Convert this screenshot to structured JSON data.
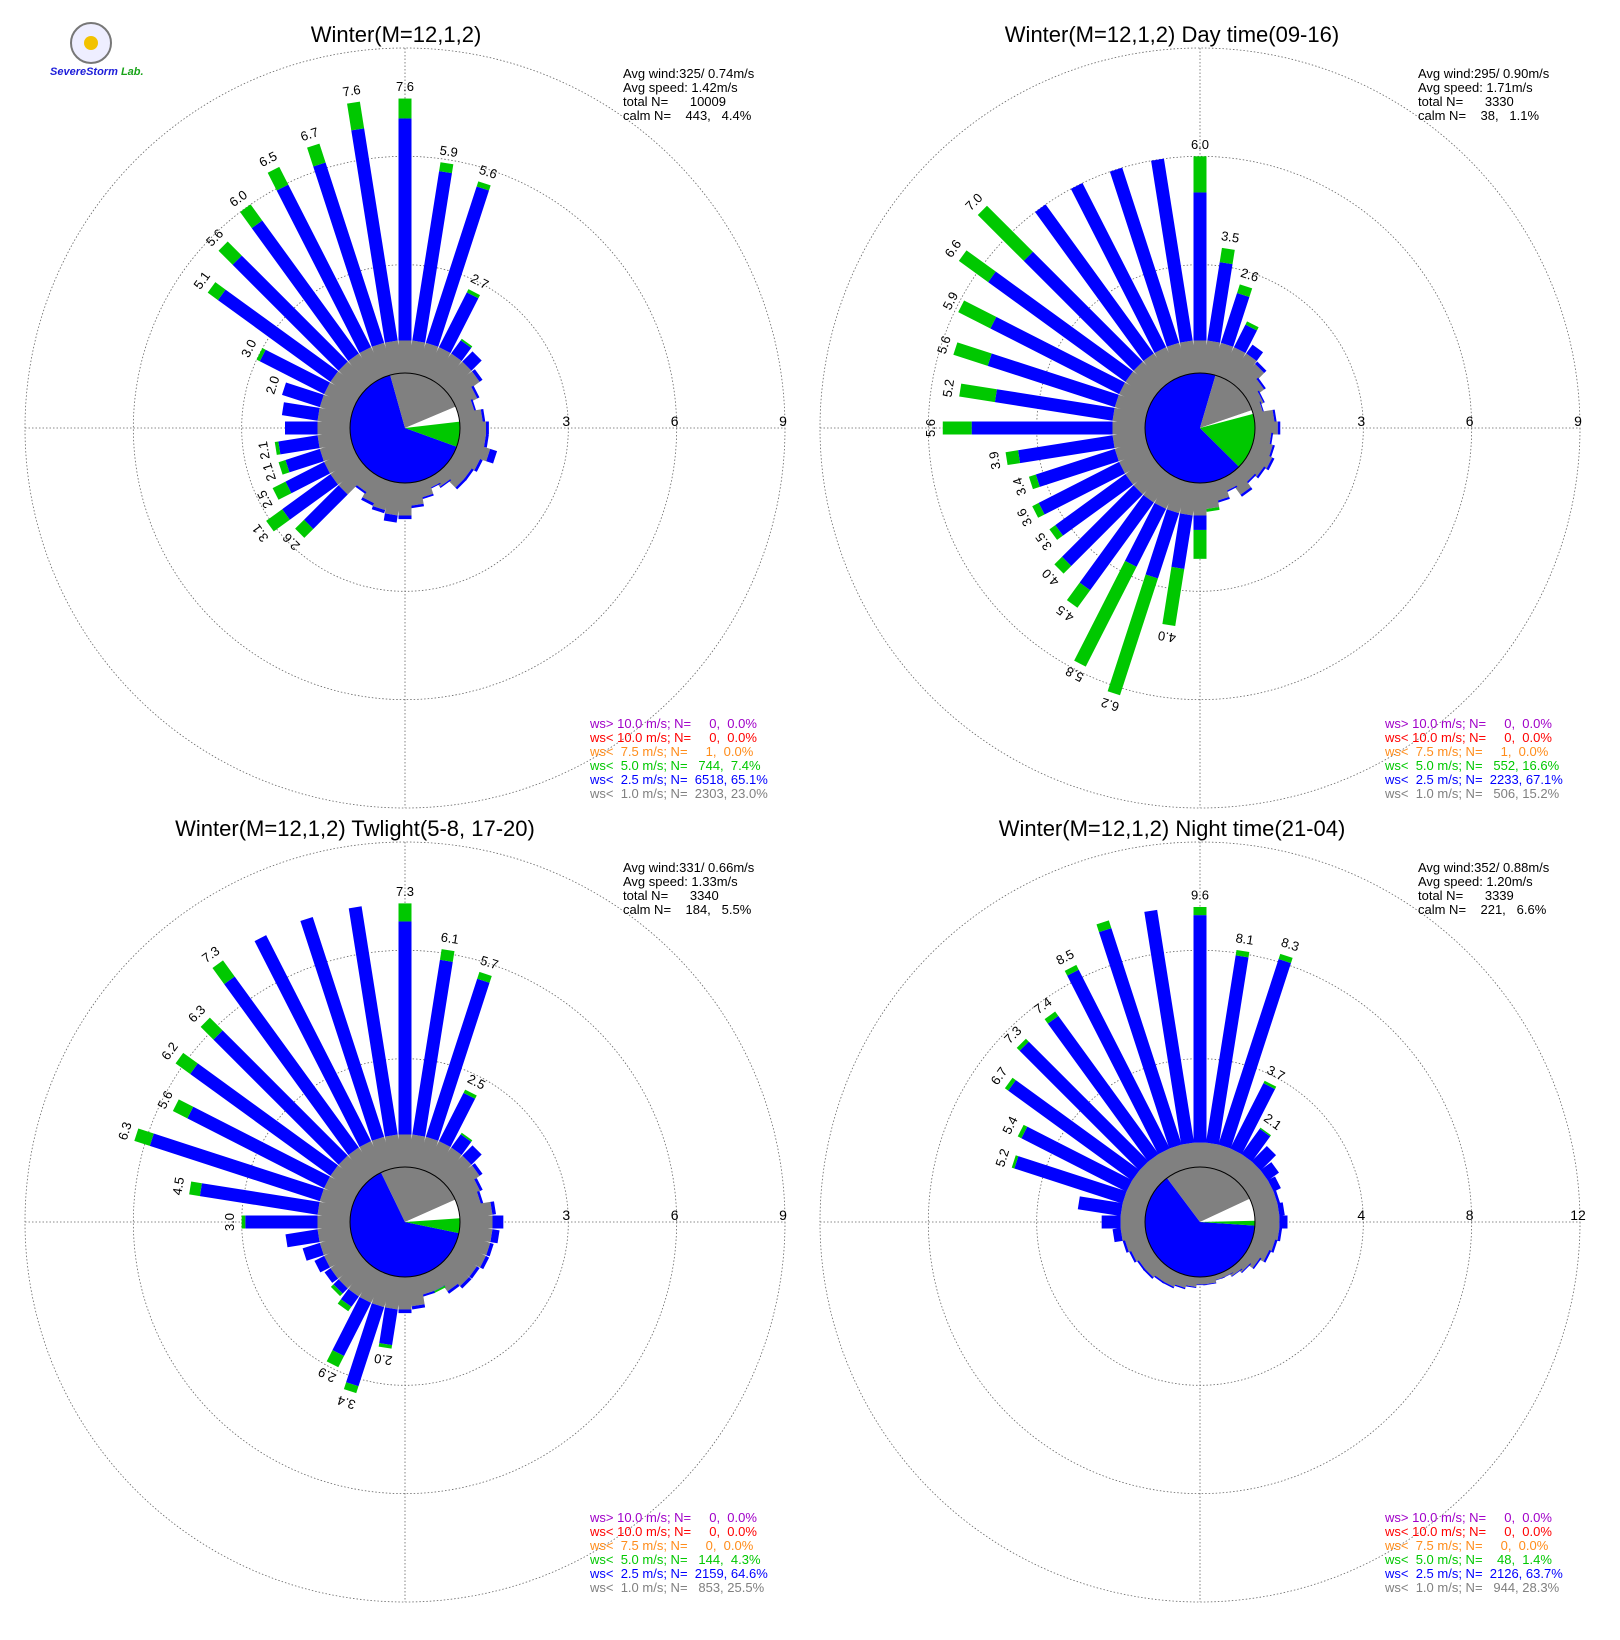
{
  "logo": {
    "text": "SevereStorm",
    "lab": "Lab."
  },
  "colors": {
    "ws_gt10": "#a000c8",
    "ws_lt10": "#ff0000",
    "ws_lt75": "#ff8c1a",
    "ws_lt5": "#00c800",
    "ws_lt25": "#0000ff",
    "ws_lt1": "#808080",
    "calm": "#ffffff",
    "grid": "#666666"
  },
  "chart_data": [
    {
      "type": "wind-rose",
      "title": "Winter(M=12,1,2)",
      "rmax": 9,
      "rings": [
        3,
        6,
        9
      ],
      "stats": [
        "Avg wind:325/ 0.74m/s",
        "Avg speed: 1.42m/s",
        "total N=      10009",
        "calm N=    443,   4.4%"
      ],
      "pie": [
        23.0,
        65.1,
        7.4
      ],
      "bars": [
        7.6,
        5.9,
        5.6,
        2.7,
        1.4,
        1.3,
        1.0,
        0.7,
        0.5,
        0.7,
        0.8,
        0.8,
        1.1,
        0.8,
        0.7,
        0.7,
        0.4,
        0.3,
        0.5,
        0.7,
        1.0,
        1.1,
        0.9,
        0.8,
        0.6,
        2.6,
        3.1,
        2.5,
        2.1,
        2.1,
        1.8,
        1.9,
        2.0,
        3.0,
        5.1,
        5.6,
        6.0,
        6.5,
        6.7,
        7.6
      ],
      "green": [
        0.55,
        0.25,
        0.15,
        0.1,
        0.05,
        0,
        0,
        0,
        0,
        0,
        0,
        0,
        0,
        0,
        0,
        0,
        0,
        0,
        0,
        0,
        0,
        0,
        0,
        0,
        0,
        0.35,
        0.55,
        0.4,
        0.2,
        0.1,
        0,
        0,
        0,
        0.1,
        0.35,
        0.55,
        0.55,
        0.55,
        0.55,
        0.75
      ],
      "labels": [
        7.6,
        5.9,
        5.6,
        2.7,
        null,
        null,
        null,
        null,
        null,
        null,
        null,
        null,
        null,
        null,
        null,
        null,
        null,
        null,
        null,
        null,
        null,
        null,
        null,
        null,
        null,
        2.6,
        3.1,
        2.5,
        2.1,
        2.1,
        null,
        null,
        2.0,
        3.0,
        5.1,
        5.6,
        6.0,
        6.5,
        6.7,
        7.6
      ],
      "legend": [
        "ws> 10.0 m/s; N=     0,  0.0%",
        "ws< 10.0 m/s; N=     0,  0.0%",
        "ws<  7.5 m/s; N=     1,  0.0%",
        "ws<  5.0 m/s; N=   744,  7.4%",
        "ws<  2.5 m/s; N=  6518, 65.1%",
        "ws<  1.0 m/s; N=  2303, 23.0%"
      ]
    },
    {
      "type": "wind-rose",
      "title": "Winter(M=12,1,2) Day time(09-16)",
      "rmax": 9,
      "rings": [
        3,
        6,
        9
      ],
      "stats": [
        "Avg wind:295/ 0.90m/s",
        "Avg speed: 1.71m/s",
        "total N=      3330",
        "calm N=    38,   1.1%"
      ],
      "pie": [
        15.2,
        67.1,
        16.6
      ],
      "bars": [
        6.0,
        3.5,
        2.6,
        1.7,
        1.2,
        0.9,
        0.6,
        0.4,
        0.3,
        0.6,
        0.7,
        0.5,
        0.6,
        0.7,
        0.6,
        0.5,
        0.7,
        0.4,
        0.6,
        0.8,
        2.1,
        4.0,
        6.2,
        5.8,
        4.5,
        4.0,
        3.5,
        3.6,
        3.4,
        3.9,
        5.6,
        5.2,
        5.6,
        5.9,
        6.6,
        7.0,
        6.0,
        6.0,
        6.0,
        6.0
      ],
      "green": [
        1.0,
        0.4,
        0.25,
        0.1,
        0,
        0,
        0,
        0,
        0,
        0,
        0,
        0,
        0,
        0,
        0,
        0,
        0,
        0,
        0,
        0.1,
        0.8,
        1.6,
        3.4,
        3.1,
        0.6,
        0.3,
        0.2,
        0.2,
        0.2,
        0.35,
        0.8,
        1.0,
        1.0,
        1.0,
        1.0,
        1.8,
        0,
        0,
        0,
        0
      ],
      "labels": [
        6.0,
        3.5,
        2.6,
        null,
        null,
        null,
        null,
        null,
        null,
        null,
        null,
        null,
        null,
        null,
        null,
        null,
        null,
        null,
        null,
        null,
        null,
        4.0,
        6.2,
        5.8,
        4.5,
        4.0,
        3.5,
        3.6,
        3.4,
        3.9,
        5.6,
        5.2,
        5.6,
        5.9,
        6.6,
        7.0,
        null,
        null,
        null,
        null
      ],
      "legend": [
        "ws> 10.0 m/s; N=     0,  0.0%",
        "ws< 10.0 m/s; N=     0,  0.0%",
        "ws<  7.5 m/s; N=     1,  0.0%",
        "ws<  5.0 m/s; N=   552, 16.6%",
        "ws<  2.5 m/s; N=  2233, 67.1%",
        "ws<  1.0 m/s; N=   506, 15.2%"
      ]
    },
    {
      "type": "wind-rose",
      "title": "Winter(M=12,1,2) Twlight(5-8, 17-20)",
      "rmax": 9,
      "rings": [
        3,
        6,
        9
      ],
      "stats": [
        "Avg wind:331/ 0.66m/s",
        "Avg speed: 1.33m/s",
        "total N=      3340",
        "calm N=    184,   5.5%"
      ],
      "pie": [
        25.5,
        64.6,
        4.3
      ],
      "bars": [
        7.3,
        6.1,
        5.7,
        2.5,
        1.4,
        1.3,
        1.0,
        0.8,
        0.7,
        1.0,
        1.2,
        1.1,
        1.0,
        1.0,
        0.9,
        0.9,
        0.8,
        0.6,
        0.6,
        0.9,
        1.0,
        2.0,
        3.4,
        2.9,
        1.4,
        1.2,
        1.1,
        1.2,
        1.4,
        1.8,
        3.0,
        4.5,
        6.3,
        5.6,
        6.2,
        6.3,
        7.3,
        7.3,
        7.3,
        7.3
      ],
      "green": [
        0.5,
        0.3,
        0.2,
        0.1,
        0.05,
        0,
        0,
        0,
        0,
        0,
        0,
        0,
        0,
        0,
        0,
        0,
        0,
        0.05,
        0,
        0,
        0,
        0.1,
        0.2,
        0.35,
        0.15,
        0.1,
        0,
        0,
        0,
        0,
        0.1,
        0.3,
        0.45,
        0.45,
        0.5,
        0.5,
        0.55,
        0,
        0,
        0
      ],
      "labels": [
        7.3,
        6.1,
        5.7,
        2.5,
        null,
        null,
        null,
        null,
        null,
        null,
        null,
        null,
        null,
        null,
        null,
        null,
        null,
        null,
        null,
        null,
        null,
        2.0,
        3.4,
        2.9,
        null,
        null,
        null,
        null,
        null,
        null,
        3.0,
        4.5,
        6.3,
        5.6,
        6.2,
        6.3,
        7.3,
        null,
        null,
        null
      ],
      "legend": [
        "ws> 10.0 m/s; N=     0,  0.0%",
        "ws< 10.0 m/s; N=     0,  0.0%",
        "ws<  7.5 m/s; N=     0,  0.0%",
        "ws<  5.0 m/s; N=   144,  4.3%",
        "ws<  2.5 m/s; N=  2159, 64.6%",
        "ws<  1.0 m/s; N=   853, 25.5%"
      ]
    },
    {
      "type": "wind-rose",
      "title": "Winter(M=12,1,2) Night time(21-04)",
      "rmax": 12,
      "rings": [
        4,
        8,
        12
      ],
      "stats": [
        "Avg wind:352/ 0.88m/s",
        "Avg speed: 1.20m/s",
        "total N=      3339",
        "calm N=    221,   6.6%"
      ],
      "pie": [
        28.3,
        63.7,
        1.4
      ],
      "bars": [
        9.6,
        8.1,
        8.3,
        3.7,
        2.1,
        1.7,
        1.4,
        1.2,
        1.0,
        1.1,
        1.2,
        1.0,
        0.9,
        0.8,
        0.6,
        0.4,
        0.3,
        0.2,
        0.2,
        0.3,
        0.3,
        0.4,
        0.5,
        0.6,
        0.6,
        0.7,
        0.7,
        0.8,
        0.9,
        1.2,
        1.6,
        2.5,
        5.2,
        5.4,
        6.7,
        7.3,
        7.4,
        8.5,
        9.6,
        9.6
      ],
      "green": [
        0.3,
        0.2,
        0.2,
        0.1,
        0.05,
        0,
        0,
        0,
        0,
        0,
        0,
        0,
        0,
        0,
        0,
        0,
        0,
        0,
        0,
        0,
        0,
        0,
        0,
        0,
        0,
        0,
        0,
        0,
        0,
        0,
        0,
        0,
        0.1,
        0.15,
        0.15,
        0.15,
        0.2,
        0.2,
        0.3,
        0
      ],
      "labels": [
        9.6,
        8.1,
        8.3,
        3.7,
        2.1,
        null,
        null,
        null,
        null,
        null,
        null,
        null,
        null,
        null,
        null,
        null,
        null,
        null,
        null,
        null,
        null,
        null,
        null,
        null,
        null,
        null,
        null,
        null,
        null,
        null,
        null,
        null,
        5.2,
        5.4,
        6.7,
        7.3,
        7.4,
        8.5,
        null,
        null
      ],
      "legend": [
        "ws> 10.0 m/s; N=     0,  0.0%",
        "ws< 10.0 m/s; N=     0,  0.0%",
        "ws<  7.5 m/s; N=     0,  0.0%",
        "ws<  5.0 m/s; N=    48,  1.4%",
        "ws<  2.5 m/s; N=  2126, 63.7%",
        "ws<  1.0 m/s; N=   944, 28.3%"
      ]
    }
  ]
}
